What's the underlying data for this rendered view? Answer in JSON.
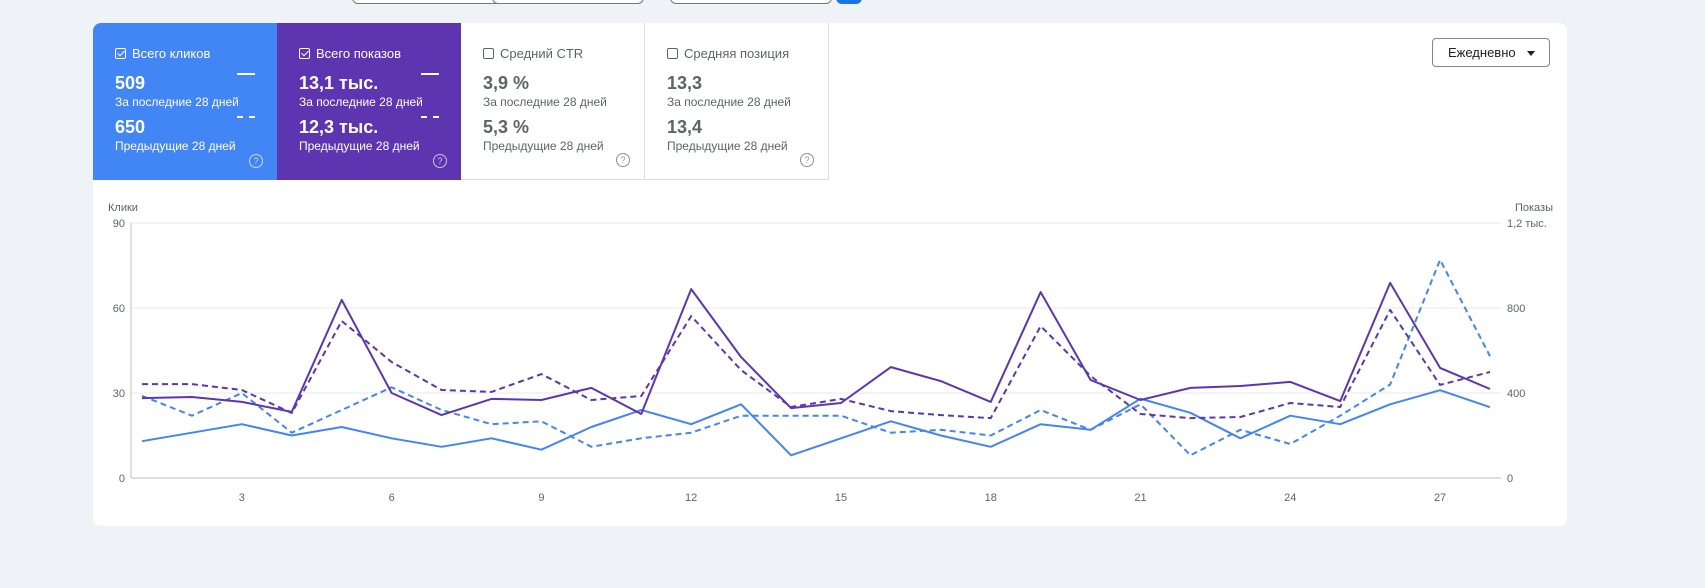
{
  "metrics": [
    {
      "label": "Всего кликов",
      "checked": true,
      "current": "509",
      "current_label": "За последние 28 дней",
      "previous": "650",
      "previous_label": "Предыдущие 28 дней",
      "color": "#4285f4"
    },
    {
      "label": "Всего показов",
      "checked": true,
      "current": "13,1 тыс.",
      "current_label": "За последние 28 дней",
      "previous": "12,3 тыс.",
      "previous_label": "Предыдущие 28 дней",
      "color": "#5e35b1"
    },
    {
      "label": "Средний CTR",
      "checked": false,
      "current": "3,9 %",
      "current_label": "За последние 28 дней",
      "previous": "5,3 %",
      "previous_label": "Предыдущие 28 дней"
    },
    {
      "label": "Средняя позиция",
      "checked": false,
      "current": "13,3",
      "current_label": "За последние 28 дней",
      "previous": "13,4",
      "previous_label": "Предыдущие 28 дней"
    }
  ],
  "help_icon": "?",
  "granularity": {
    "selected": "Ежедневно"
  },
  "chart_data": {
    "type": "line",
    "x": [
      1,
      2,
      3,
      4,
      5,
      6,
      7,
      8,
      9,
      10,
      11,
      12,
      13,
      14,
      15,
      16,
      17,
      18,
      19,
      20,
      21,
      22,
      23,
      24,
      25,
      26,
      27,
      28
    ],
    "xticks": [
      "3",
      "6",
      "9",
      "12",
      "15",
      "18",
      "21",
      "24",
      "27"
    ],
    "left_axis": {
      "label": "Клики",
      "ylim": [
        0,
        90
      ],
      "ticks": [
        "0",
        "30",
        "60",
        "90"
      ]
    },
    "right_axis": {
      "label": "Показы",
      "ylim": [
        0,
        1200
      ],
      "ticks": [
        "0",
        "400",
        "800",
        "1,2 тыс."
      ]
    },
    "grid": true,
    "series": [
      {
        "axis": "left",
        "style": "solid",
        "color": "#4285f4",
        "values": [
          13,
          16,
          19,
          15,
          18,
          14,
          11,
          14,
          10,
          18,
          24,
          19,
          26,
          8,
          14,
          20,
          15,
          11,
          19,
          17,
          28,
          23,
          14,
          22,
          19,
          26,
          31,
          25
        ]
      },
      {
        "axis": "left",
        "style": "dashed",
        "color": "#4285f4",
        "values": [
          29,
          22,
          30,
          16,
          24,
          32,
          24,
          19,
          20,
          11,
          14,
          16,
          22,
          22,
          22,
          16,
          17,
          15,
          24,
          17,
          26,
          8,
          17,
          12,
          22,
          33,
          77,
          43
        ]
      },
      {
        "axis": "right",
        "style": "solid",
        "color": "#5e35b1",
        "values": [
          376,
          381,
          358,
          311,
          838,
          400,
          296,
          372,
          367,
          424,
          301,
          889,
          569,
          329,
          353,
          522,
          456,
          358,
          875,
          461,
          367,
          424,
          433,
          452,
          362,
          918,
          518,
          419
        ]
      },
      {
        "axis": "right",
        "style": "dashed",
        "color": "#5e35b1",
        "values": [
          442,
          442,
          414,
          306,
          739,
          546,
          414,
          405,
          489,
          367,
          386,
          762,
          508,
          334,
          372,
          315,
          296,
          282,
          715,
          480,
          301,
          282,
          287,
          353,
          334,
          791,
          438,
          499
        ]
      }
    ]
  }
}
